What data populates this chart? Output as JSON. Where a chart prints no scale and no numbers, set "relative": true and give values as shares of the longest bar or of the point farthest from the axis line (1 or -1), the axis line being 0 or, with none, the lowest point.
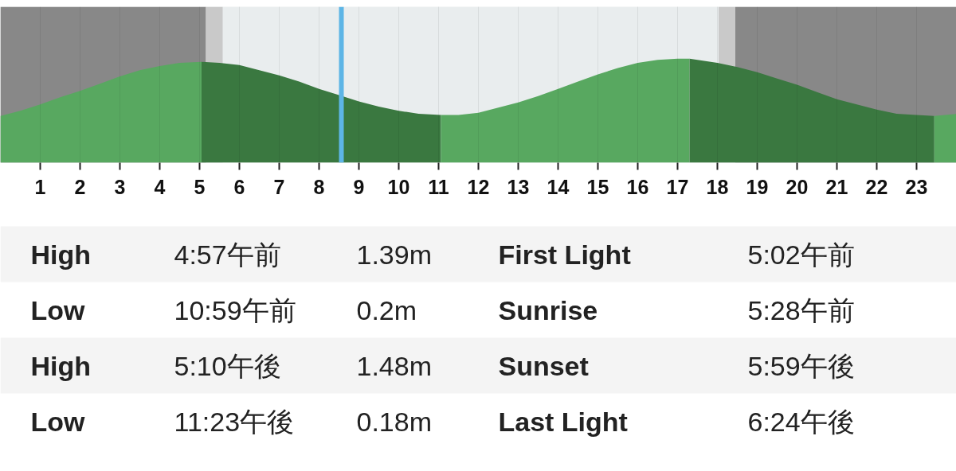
{
  "chart_data": [
    {
      "type": "area",
      "relative": true,
      "xlim": [
        0,
        24
      ],
      "xticks": [
        1,
        2,
        3,
        4,
        5,
        6,
        7,
        8,
        9,
        10,
        11,
        12,
        13,
        14,
        15,
        16,
        17,
        18,
        19,
        20,
        21,
        22,
        23
      ],
      "grid": "x",
      "series": [
        {
          "color": "#58a860",
          "x": [
            0,
            0.5,
            1,
            1.5,
            2,
            2.5,
            3,
            3.5,
            4,
            4.5,
            5.05
          ],
          "values": [
            0.45,
            0.5,
            0.56,
            0.63,
            0.69,
            0.76,
            0.83,
            0.89,
            0.93,
            0.96,
            0.97
          ]
        },
        {
          "color": "#3a7840",
          "x": [
            5.05,
            5.5,
            6,
            6.5,
            7,
            7.5,
            8,
            8.5,
            9,
            9.5,
            10,
            10.5,
            11.06
          ],
          "values": [
            0.97,
            0.96,
            0.94,
            0.89,
            0.84,
            0.78,
            0.71,
            0.65,
            0.59,
            0.54,
            0.5,
            0.47,
            0.46
          ]
        },
        {
          "color": "#58a860",
          "x": [
            11.06,
            11.5,
            12,
            12.5,
            13,
            13.5,
            14,
            14.5,
            15,
            15.5,
            16,
            16.5,
            17,
            17.3
          ],
          "values": [
            0.46,
            0.46,
            0.48,
            0.53,
            0.58,
            0.64,
            0.71,
            0.78,
            0.85,
            0.91,
            0.96,
            0.99,
            1.0,
            1.0
          ]
        },
        {
          "color": "#3a7840",
          "x": [
            17.3,
            17.5,
            18,
            18.5,
            19,
            19.5,
            20,
            20.5,
            21,
            21.5,
            22,
            22.5,
            23,
            23.44
          ],
          "values": [
            1.0,
            0.99,
            0.96,
            0.92,
            0.87,
            0.81,
            0.75,
            0.68,
            0.61,
            0.56,
            0.51,
            0.47,
            0.46,
            0.45
          ]
        },
        {
          "color": "#58a860",
          "x": [
            23.44,
            24
          ],
          "values": [
            0.45,
            0.47
          ]
        }
      ],
      "bands": [
        {
          "axis": "x",
          "from": 0,
          "to": 5.16,
          "color": "#888888"
        },
        {
          "axis": "x",
          "from": 5.16,
          "to": 5.58,
          "color": "#c9c9c9"
        },
        {
          "axis": "x",
          "from": 18.03,
          "to": 18.45,
          "color": "#c9c9c9"
        },
        {
          "axis": "x",
          "from": 18.45,
          "to": 24,
          "color": "#888888"
        }
      ],
      "ref_lines": [
        {
          "axis": "x",
          "value": 8.56,
          "color": "#5db5e6"
        }
      ]
    },
    {
      "type": "other",
      "annotations": [
        "High",
        "4:57午前",
        "1.39m",
        "First Light",
        "5:02午前",
        "Low",
        "10:59午前",
        "0.2m",
        "Sunrise",
        "5:28午前",
        "High",
        "5:10午後",
        "1.48m",
        "Sunset",
        "5:59午後",
        "Low",
        "11:23午後",
        "0.18m",
        "Last Light",
        "6:24午後"
      ]
    }
  ]
}
